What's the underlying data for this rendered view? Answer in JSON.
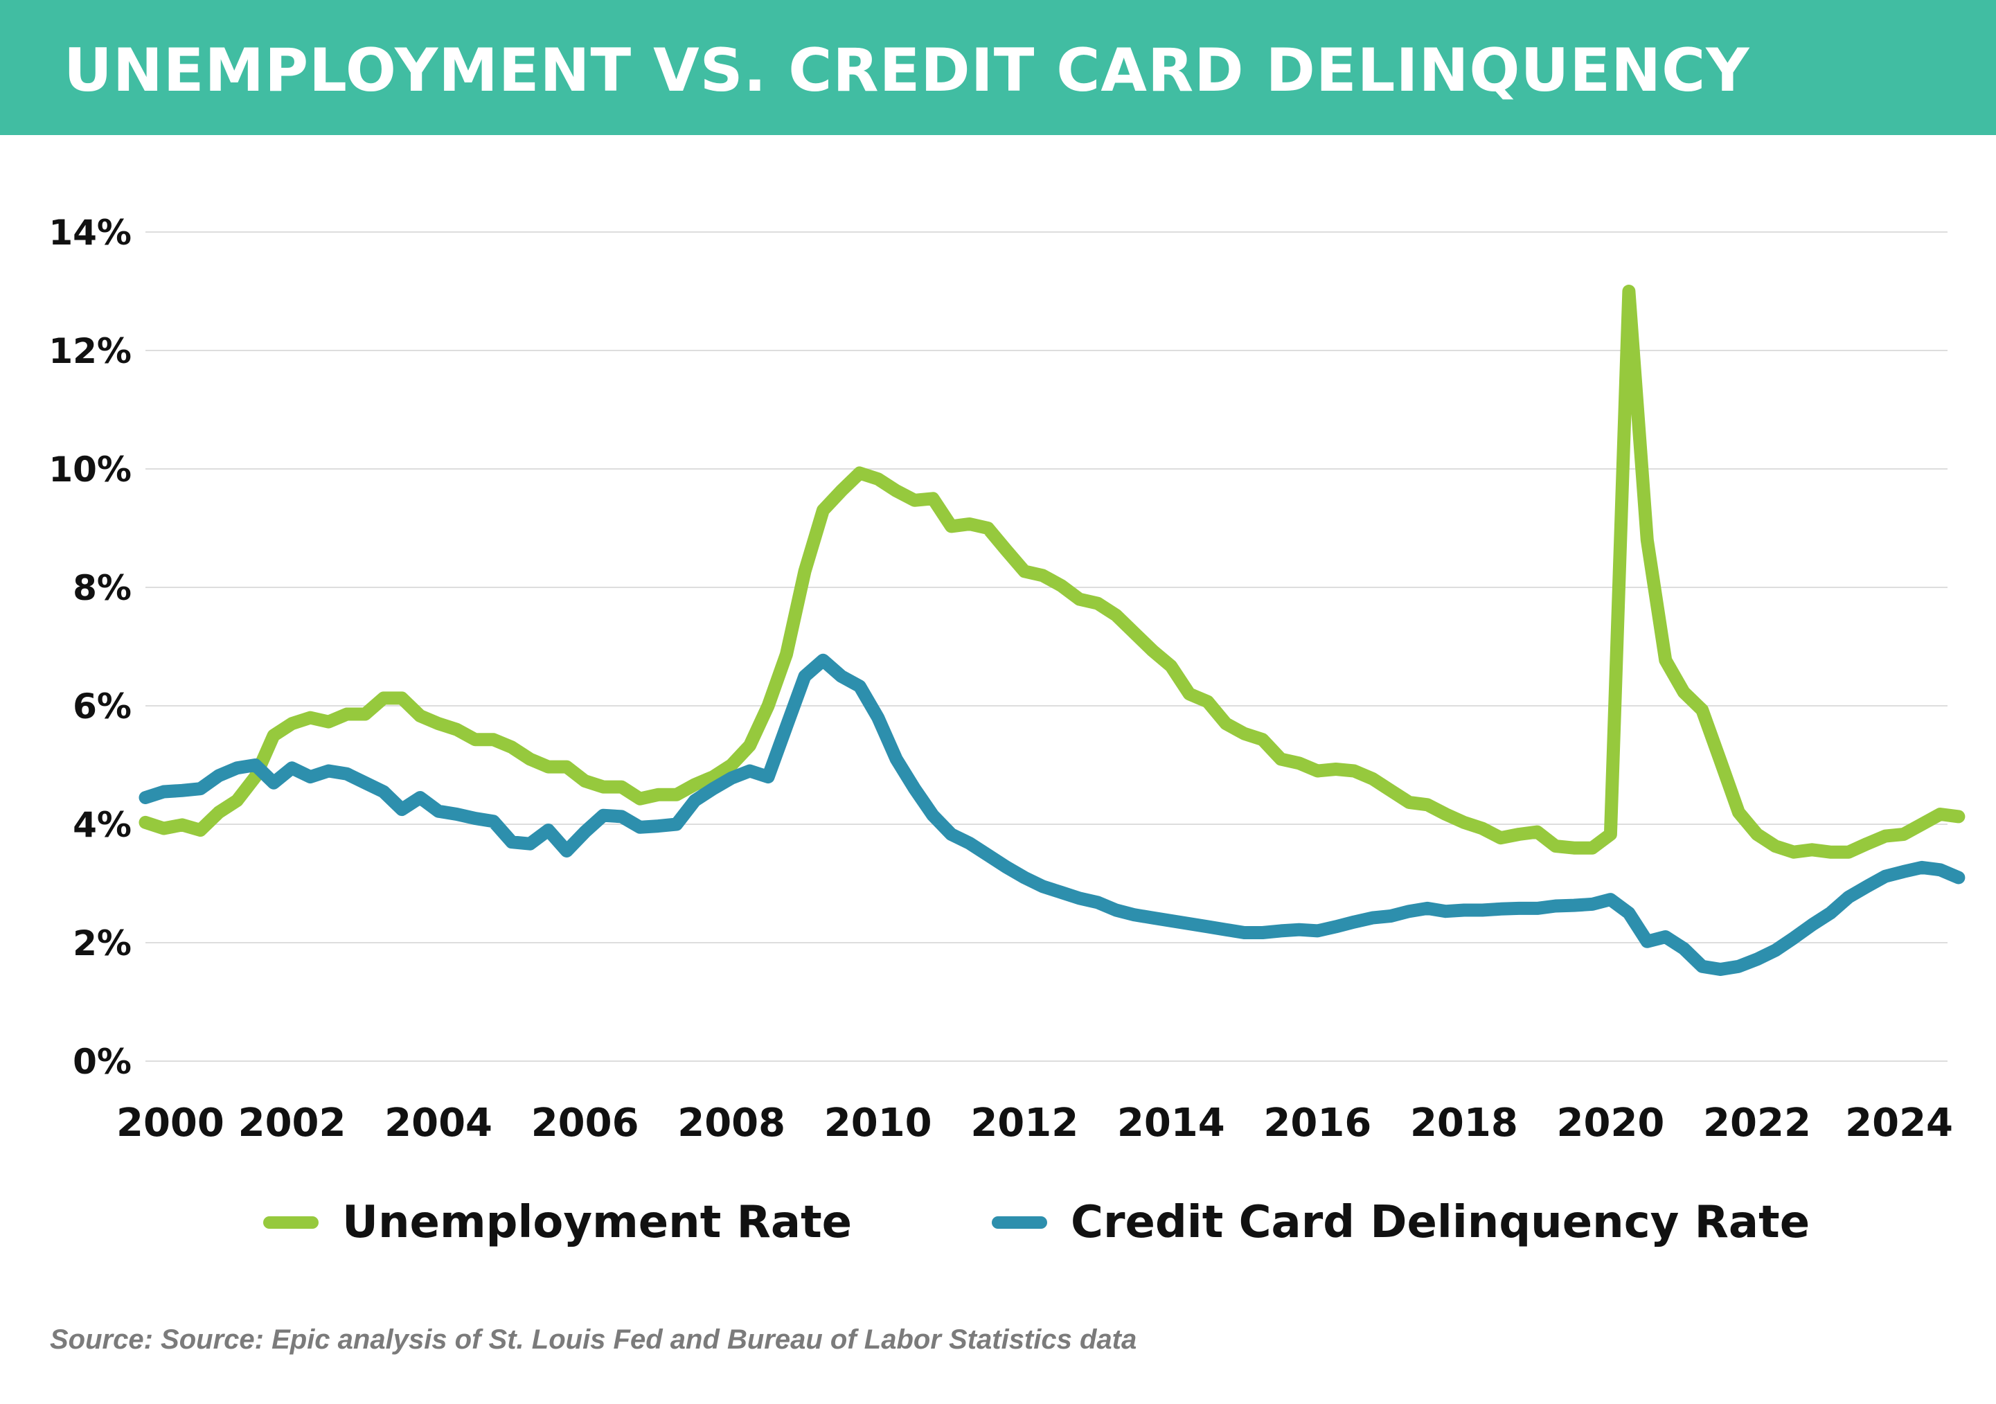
{
  "header": {
    "title": "UNEMPLOYMENT VS. CREDIT CARD DELINQUENCY",
    "background_color": "#41bda2"
  },
  "source_note": "Source: Source: Epic analysis of St. Louis Fed and Bureau of Labor Statistics data",
  "chart_data": {
    "type": "line",
    "title": "UNEMPLOYMENT VS. CREDIT CARD DELINQUENCY",
    "xlabel": "",
    "ylabel": "",
    "xlim": [
      2000,
      2024.6
    ],
    "ylim": [
      0,
      14
    ],
    "y_ticks": [
      0,
      2,
      4,
      6,
      8,
      10,
      12,
      14
    ],
    "y_tick_labels": [
      "0%",
      "2%",
      "4%",
      "6%",
      "8%",
      "10%",
      "12%",
      "14%"
    ],
    "x_ticks": [
      2000,
      2002,
      2004,
      2006,
      2008,
      2010,
      2012,
      2014,
      2016,
      2018,
      2020,
      2022,
      2024
    ],
    "x_tick_labels": [
      "2000",
      "2002",
      "2004",
      "2006",
      "2008",
      "2010",
      "2012",
      "2014",
      "2016",
      "2018",
      "2020",
      "2022",
      "2024"
    ],
    "grid": true,
    "legend_position": "bottom",
    "series": [
      {
        "name": "Unemployment Rate",
        "color": "#96c93d",
        "points": [
          [
            2000.0,
            4.03
          ],
          [
            2000.25,
            3.93
          ],
          [
            2000.5,
            3.99
          ],
          [
            2000.75,
            3.9
          ],
          [
            2001.0,
            4.2
          ],
          [
            2001.25,
            4.4
          ],
          [
            2001.5,
            4.8
          ],
          [
            2001.75,
            5.5
          ],
          [
            2002.0,
            5.7
          ],
          [
            2002.25,
            5.8
          ],
          [
            2002.5,
            5.73
          ],
          [
            2002.75,
            5.86
          ],
          [
            2003.0,
            5.86
          ],
          [
            2003.25,
            6.13
          ],
          [
            2003.5,
            6.13
          ],
          [
            2003.75,
            5.83
          ],
          [
            2004.0,
            5.7
          ],
          [
            2004.25,
            5.6
          ],
          [
            2004.5,
            5.43
          ],
          [
            2004.75,
            5.43
          ],
          [
            2005.0,
            5.3
          ],
          [
            2005.25,
            5.1
          ],
          [
            2005.5,
            4.97
          ],
          [
            2005.75,
            4.97
          ],
          [
            2006.0,
            4.73
          ],
          [
            2006.25,
            4.63
          ],
          [
            2006.5,
            4.63
          ],
          [
            2006.75,
            4.43
          ],
          [
            2007.0,
            4.5
          ],
          [
            2007.25,
            4.5
          ],
          [
            2007.5,
            4.67
          ],
          [
            2007.75,
            4.8
          ],
          [
            2008.0,
            5.0
          ],
          [
            2008.25,
            5.33
          ],
          [
            2008.5,
            6.0
          ],
          [
            2008.75,
            6.87
          ],
          [
            2009.0,
            8.27
          ],
          [
            2009.25,
            9.3
          ],
          [
            2009.5,
            9.63
          ],
          [
            2009.75,
            9.93
          ],
          [
            2010.0,
            9.83
          ],
          [
            2010.25,
            9.63
          ],
          [
            2010.5,
            9.47
          ],
          [
            2010.75,
            9.5
          ],
          [
            2011.0,
            9.03
          ],
          [
            2011.25,
            9.07
          ],
          [
            2011.5,
            9.0
          ],
          [
            2011.75,
            8.63
          ],
          [
            2012.0,
            8.27
          ],
          [
            2012.25,
            8.2
          ],
          [
            2012.5,
            8.03
          ],
          [
            2012.75,
            7.8
          ],
          [
            2013.0,
            7.73
          ],
          [
            2013.25,
            7.53
          ],
          [
            2013.5,
            7.23
          ],
          [
            2013.75,
            6.93
          ],
          [
            2014.0,
            6.67
          ],
          [
            2014.25,
            6.2
          ],
          [
            2014.5,
            6.07
          ],
          [
            2014.75,
            5.7
          ],
          [
            2015.0,
            5.53
          ],
          [
            2015.25,
            5.43
          ],
          [
            2015.5,
            5.1
          ],
          [
            2015.75,
            5.03
          ],
          [
            2016.0,
            4.9
          ],
          [
            2016.25,
            4.93
          ],
          [
            2016.5,
            4.9
          ],
          [
            2016.75,
            4.77
          ],
          [
            2017.0,
            4.57
          ],
          [
            2017.25,
            4.37
          ],
          [
            2017.5,
            4.33
          ],
          [
            2017.75,
            4.17
          ],
          [
            2018.0,
            4.03
          ],
          [
            2018.25,
            3.93
          ],
          [
            2018.5,
            3.77
          ],
          [
            2018.75,
            3.83
          ],
          [
            2019.0,
            3.87
          ],
          [
            2019.25,
            3.63
          ],
          [
            2019.5,
            3.6
          ],
          [
            2019.75,
            3.6
          ],
          [
            2020.0,
            3.83
          ],
          [
            2020.25,
            13.0
          ],
          [
            2020.5,
            8.8
          ],
          [
            2020.75,
            6.77
          ],
          [
            2021.0,
            6.23
          ],
          [
            2021.25,
            5.93
          ],
          [
            2021.5,
            5.07
          ],
          [
            2021.75,
            4.2
          ],
          [
            2022.0,
            3.83
          ],
          [
            2022.25,
            3.63
          ],
          [
            2022.5,
            3.53
          ],
          [
            2022.75,
            3.57
          ],
          [
            2023.0,
            3.53
          ],
          [
            2023.25,
            3.53
          ],
          [
            2023.5,
            3.67
          ],
          [
            2023.75,
            3.8
          ],
          [
            2024.0,
            3.83
          ],
          [
            2024.25,
            4.0
          ],
          [
            2024.5,
            4.17
          ],
          [
            2024.75,
            4.13
          ]
        ]
      },
      {
        "name": "Credit Card Delinquency Rate",
        "color": "#2d8fad",
        "points": [
          [
            2000.0,
            4.45
          ],
          [
            2000.25,
            4.55
          ],
          [
            2000.5,
            4.57
          ],
          [
            2000.75,
            4.6
          ],
          [
            2001.0,
            4.82
          ],
          [
            2001.25,
            4.95
          ],
          [
            2001.5,
            5.0
          ],
          [
            2001.75,
            4.7
          ],
          [
            2002.0,
            4.95
          ],
          [
            2002.25,
            4.8
          ],
          [
            2002.5,
            4.9
          ],
          [
            2002.75,
            4.85
          ],
          [
            2003.0,
            4.7
          ],
          [
            2003.25,
            4.55
          ],
          [
            2003.5,
            4.25
          ],
          [
            2003.75,
            4.45
          ],
          [
            2004.0,
            4.22
          ],
          [
            2004.25,
            4.17
          ],
          [
            2004.5,
            4.1
          ],
          [
            2004.75,
            4.05
          ],
          [
            2005.0,
            3.7
          ],
          [
            2005.25,
            3.67
          ],
          [
            2005.5,
            3.9
          ],
          [
            2005.75,
            3.55
          ],
          [
            2006.0,
            3.87
          ],
          [
            2006.25,
            4.15
          ],
          [
            2006.5,
            4.13
          ],
          [
            2006.75,
            3.95
          ],
          [
            2007.0,
            3.97
          ],
          [
            2007.25,
            4.0
          ],
          [
            2007.5,
            4.4
          ],
          [
            2007.75,
            4.6
          ],
          [
            2008.0,
            4.78
          ],
          [
            2008.25,
            4.9
          ],
          [
            2008.5,
            4.8
          ],
          [
            2008.75,
            5.65
          ],
          [
            2009.0,
            6.5
          ],
          [
            2009.25,
            6.77
          ],
          [
            2009.5,
            6.5
          ],
          [
            2009.75,
            6.33
          ],
          [
            2010.0,
            5.8
          ],
          [
            2010.25,
            5.1
          ],
          [
            2010.5,
            4.6
          ],
          [
            2010.75,
            4.15
          ],
          [
            2011.0,
            3.83
          ],
          [
            2011.25,
            3.68
          ],
          [
            2011.5,
            3.48
          ],
          [
            2011.75,
            3.28
          ],
          [
            2012.0,
            3.1
          ],
          [
            2012.25,
            2.95
          ],
          [
            2012.5,
            2.85
          ],
          [
            2012.75,
            2.75
          ],
          [
            2013.0,
            2.68
          ],
          [
            2013.25,
            2.55
          ],
          [
            2013.5,
            2.47
          ],
          [
            2013.75,
            2.42
          ],
          [
            2014.0,
            2.37
          ],
          [
            2014.25,
            2.32
          ],
          [
            2014.5,
            2.27
          ],
          [
            2014.75,
            2.22
          ],
          [
            2015.0,
            2.17
          ],
          [
            2015.25,
            2.17
          ],
          [
            2015.5,
            2.2
          ],
          [
            2015.75,
            2.22
          ],
          [
            2016.0,
            2.2
          ],
          [
            2016.25,
            2.27
          ],
          [
            2016.5,
            2.35
          ],
          [
            2016.75,
            2.42
          ],
          [
            2017.0,
            2.45
          ],
          [
            2017.25,
            2.53
          ],
          [
            2017.5,
            2.58
          ],
          [
            2017.75,
            2.53
          ],
          [
            2018.0,
            2.55
          ],
          [
            2018.25,
            2.55
          ],
          [
            2018.5,
            2.57
          ],
          [
            2018.75,
            2.58
          ],
          [
            2019.0,
            2.58
          ],
          [
            2019.25,
            2.62
          ],
          [
            2019.5,
            2.63
          ],
          [
            2019.75,
            2.65
          ],
          [
            2020.0,
            2.73
          ],
          [
            2020.25,
            2.5
          ],
          [
            2020.5,
            2.02
          ],
          [
            2020.75,
            2.1
          ],
          [
            2021.0,
            1.9
          ],
          [
            2021.25,
            1.6
          ],
          [
            2021.5,
            1.55
          ],
          [
            2021.75,
            1.6
          ],
          [
            2022.0,
            1.72
          ],
          [
            2022.25,
            1.87
          ],
          [
            2022.5,
            2.08
          ],
          [
            2022.75,
            2.3
          ],
          [
            2023.0,
            2.5
          ],
          [
            2023.25,
            2.77
          ],
          [
            2023.5,
            2.95
          ],
          [
            2023.75,
            3.12
          ],
          [
            2024.0,
            3.2
          ],
          [
            2024.25,
            3.27
          ],
          [
            2024.5,
            3.23
          ],
          [
            2024.75,
            3.1
          ]
        ]
      }
    ]
  }
}
